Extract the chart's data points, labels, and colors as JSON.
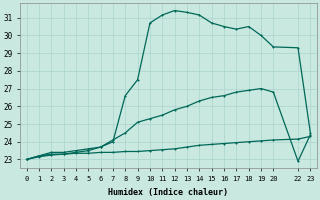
{
  "xlabel": "Humidex (Indice chaleur)",
  "bg_color": "#c8e8e0",
  "grid_color": "#b0d8d0",
  "line_color": "#006858",
  "xlim": [
    -0.5,
    23.5
  ],
  "ylim": [
    22.5,
    31.8
  ],
  "xticks": [
    0,
    1,
    2,
    3,
    4,
    5,
    6,
    7,
    8,
    9,
    10,
    11,
    12,
    13,
    14,
    15,
    16,
    17,
    18,
    19,
    20,
    22,
    23
  ],
  "xtick_labels": [
    "0",
    "1",
    "2",
    "3",
    "4",
    "5",
    "6",
    "7",
    "8",
    "9",
    "10",
    "11",
    "12",
    "13",
    "14",
    "15",
    "16",
    "17",
    "18",
    "19",
    "20",
    "22",
    "23"
  ],
  "yticks": [
    23,
    24,
    25,
    26,
    27,
    28,
    29,
    30,
    31
  ],
  "line1_x": [
    0,
    1,
    2,
    3,
    4,
    5,
    6,
    7,
    8,
    9,
    10,
    11,
    12,
    13,
    14,
    15,
    16,
    17,
    18,
    19,
    20,
    22,
    23
  ],
  "line1_y": [
    23.0,
    23.15,
    23.25,
    23.3,
    23.35,
    23.35,
    23.4,
    23.4,
    23.45,
    23.45,
    23.5,
    23.55,
    23.6,
    23.7,
    23.8,
    23.85,
    23.9,
    23.95,
    24.0,
    24.05,
    24.1,
    24.15,
    24.3
  ],
  "line2_x": [
    0,
    1,
    2,
    3,
    4,
    5,
    6,
    7,
    8,
    9,
    10,
    11,
    12,
    13,
    14,
    15,
    16,
    17,
    18,
    19,
    20,
    22,
    23
  ],
  "line2_y": [
    23.0,
    23.2,
    23.4,
    23.4,
    23.5,
    23.6,
    23.7,
    24.1,
    24.5,
    25.1,
    25.3,
    25.5,
    25.8,
    26.0,
    26.3,
    26.5,
    26.6,
    26.8,
    26.9,
    27.0,
    26.8,
    22.9,
    24.4
  ],
  "line3_x": [
    0,
    1,
    2,
    3,
    4,
    5,
    6,
    7,
    8,
    9,
    10,
    11,
    12,
    13,
    14,
    15,
    16,
    17,
    18,
    19,
    20,
    22,
    23
  ],
  "line3_y": [
    23.0,
    23.2,
    23.3,
    23.3,
    23.4,
    23.5,
    23.7,
    24.0,
    26.6,
    27.5,
    30.7,
    31.15,
    31.4,
    31.3,
    31.15,
    30.7,
    30.5,
    30.35,
    30.5,
    30.0,
    29.35,
    29.3,
    24.5
  ]
}
